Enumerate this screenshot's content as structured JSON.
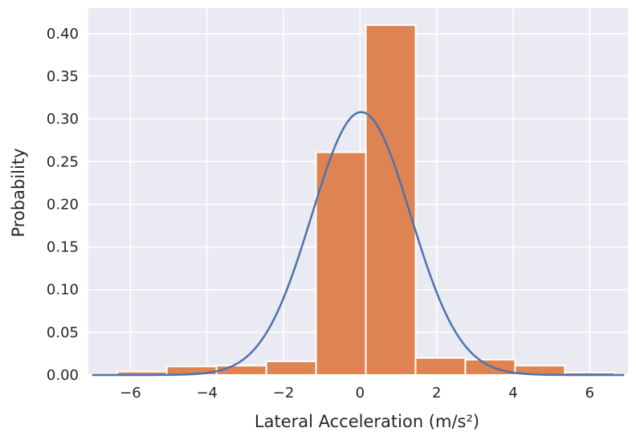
{
  "chart_data": {
    "type": "bar",
    "title": "",
    "xlabel": "Lateral Acceleration (m/s²)",
    "ylabel": "Probability",
    "xlim": [
      -7.1,
      7.0
    ],
    "ylim": [
      0.0,
      0.43
    ],
    "grid": true,
    "x_ticks": [
      -6,
      -4,
      -2,
      0,
      2,
      4,
      6
    ],
    "x_tick_labels": [
      "−6",
      "−4",
      "−2",
      "0",
      "2",
      "4",
      "6"
    ],
    "y_ticks": [
      0.0,
      0.05,
      0.1,
      0.15,
      0.2,
      0.25,
      0.3,
      0.35,
      0.4
    ],
    "y_tick_labels": [
      "0.00",
      "0.05",
      "0.10",
      "0.15",
      "0.20",
      "0.25",
      "0.30",
      "0.35",
      "0.40"
    ],
    "bar_width": 1.3,
    "bars": [
      {
        "x": -7.0,
        "value": 0.0005
      },
      {
        "x": -5.7,
        "value": 0.004
      },
      {
        "x": -4.4,
        "value": 0.01
      },
      {
        "x": -3.1,
        "value": 0.011
      },
      {
        "x": -1.8,
        "value": 0.016
      },
      {
        "x": -0.5,
        "value": 0.261
      },
      {
        "x": 0.8,
        "value": 0.41
      },
      {
        "x": 2.1,
        "value": 0.02
      },
      {
        "x": 3.4,
        "value": 0.018
      },
      {
        "x": 4.7,
        "value": 0.011
      },
      {
        "x": 6.0,
        "value": 0.003
      }
    ],
    "curve": {
      "kind": "normal-pdf-fit",
      "mean": 0.03,
      "std": 1.295
    },
    "colors": {
      "background": "#eaeaf2",
      "grid": "#ffffff",
      "bar": "#dd8452",
      "bar_edge": "#ffffff",
      "line": "#4c72b0",
      "text": "#262626"
    }
  }
}
